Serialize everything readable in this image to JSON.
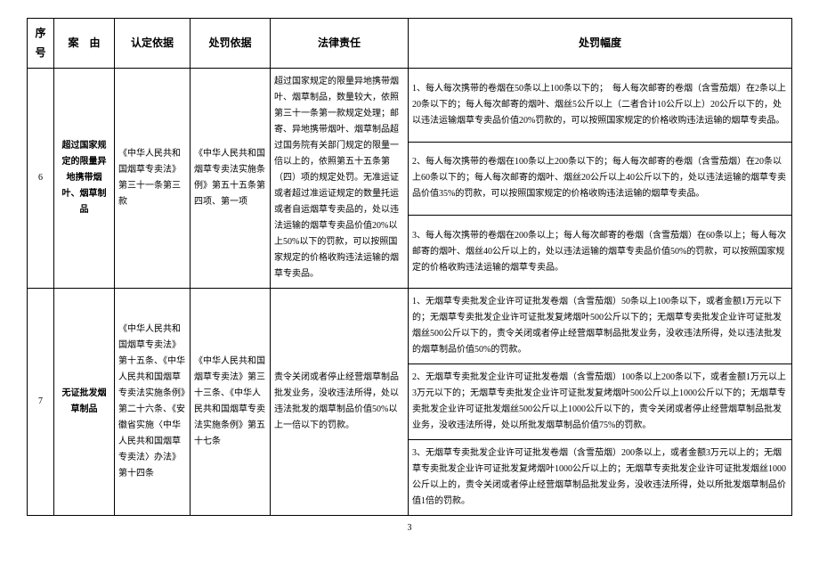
{
  "headers": {
    "seq": "序号",
    "case": "案　由",
    "basis1": "认定依据",
    "basis2": "处罚依据",
    "liability": "法律责任",
    "penalty": "处罚幅度"
  },
  "row6": {
    "seq": "6",
    "case": "超过国家规定的限量异地携带烟叶、烟草制品",
    "basis1": "《中华人民共和国烟草专卖法》第三十一条第三款",
    "basis2": "《中华人民共和国烟草专卖法实施条例》第五十五条第四项、第一项",
    "liability": "超过国家规定的限量异地携带烟叶、烟草制品，数量较大，依照第三十一条第一款规定处理；邮寄、异地携带烟叶、烟草制品超过国务院有关部门规定的限量一倍以上的，依照第五十五条第（四）项的规定处罚。无准运证或者超过准运证规定的数量托运或者自运烟草专卖品的，处以违法运输的烟草专卖品价值20%以上50%以下的罚款，可以按照国家规定的价格收购违法运输的烟草专卖品。",
    "penalty1": "1、每人每次携带的卷烟在50条以上100条以下的；　每人每次邮寄的卷烟（含雪茄烟）在2条以上20条以下的；每人每次邮寄的烟叶、烟丝5公斤以上（二者合计10公斤以上）20公斤以下的，处以违法运输烟草专卖品价值20%罚款的，可以按照国家规定的价格收购违法运输的烟草专卖品。",
    "penalty2": "2、每人每次携带的卷烟在100条以上200条以下的；每人每次邮寄的卷烟（含雪茄烟）在20条以上60条以下的；每人每次邮寄的烟叶、烟丝20公斤以上40公斤以下的，处以违法运输的烟草专卖品价值35%的罚款，可以按照国家规定的价格收购违法运输的烟草专卖品。",
    "penalty3": "3、每人每次携带的卷烟在200条以上；每人每次邮寄的卷烟（含雪茄烟）在60条以上；每人每次邮寄的烟叶、烟丝40公斤以上的，处以违法运输的烟草专卖品价值50%的罚款，可以按照国家规定的价格收购违法运输的烟草专卖品。"
  },
  "row7": {
    "seq": "7",
    "case": "无证批发烟草制品",
    "basis1": "《中华人民共和国烟草专卖法》第十五条、《中华人民共和国烟草专卖法实施条例》第二十六条、《安徽省实施〈中华人民共和国烟草专卖法〉办法》第十四条",
    "basis2": "《中华人民共和国烟草专卖法》第三十三条、《中华人民共和国烟草专卖法实施条例》第五十七条",
    "liability": "责令关闭或者停止经营烟草制品批发业务，没收违法所得，处以违法批发的烟草制品价值50%以上一倍以下的罚款。",
    "penalty1": "1、无烟草专卖批发企业许可证批发卷烟（含雪茄烟）50条以上100条以下，或者金额1万元以下的；无烟草专卖批发企业许可证批发复烤烟叶500公斤以下的；无烟草专卖批发企业许可证批发烟丝500公斤以下的，责令关闭或者停止经营烟草制品批发业务，没收违法所得，处以违法批发的烟草制品价值50%的罚款。",
    "penalty2": "2、无烟草专卖批发企业许可证批发卷烟（含雪茄烟）100条以上200条以下，或者金额1万元以上3万元以下的；无烟草专卖批发企业许可证批发复烤烟叶500公斤以上1000公斤以下的；无烟草专卖批发企业许可证批发烟丝500公斤以上1000公斤以下的，责令关闭或者停止经营烟草制品批发业务，没收违法所得，处以所批发烟草制品价值75%的罚款。",
    "penalty3": "3、无烟草专卖批发企业许可证批发卷烟（含雪茄烟）200条以上，或者金额3万元以上的；无烟草专卖批发企业许可证批发复烤烟叶1000公斤以上的；无烟草专卖批发企业许可证批发烟丝1000公斤以上的，责令关闭或者停止经营烟草制品批发业务，没收违法所得，处以所批发烟草制品价值1倍的罚款。"
  },
  "page": "3"
}
